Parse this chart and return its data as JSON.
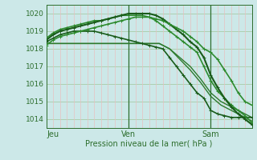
{
  "background_color": "#cce8e8",
  "grid_color_green": "#a8cca8",
  "grid_color_pink": "#e8c0c0",
  "axis_color": "#2d6e2d",
  "ylim": [
    1013.5,
    1020.5
  ],
  "xlim": [
    0,
    60
  ],
  "yticks": [
    1014,
    1015,
    1016,
    1017,
    1018,
    1019,
    1020
  ],
  "day_ticks": [
    2,
    24,
    48
  ],
  "day_labels": [
    "Jeu",
    "Ven",
    "Sam"
  ],
  "xlabel": "Pression niveau de la mer( hPa )",
  "series": [
    {
      "x": [
        0,
        3,
        6,
        9,
        12,
        15,
        18,
        21,
        24,
        27,
        30,
        33,
        36,
        39,
        42,
        45,
        48,
        51,
        54,
        57,
        60
      ],
      "y": [
        1018.3,
        1018.3,
        1018.3,
        1018.3,
        1018.3,
        1018.3,
        1018.3,
        1018.3,
        1018.3,
        1018.3,
        1018.3,
        1018.3,
        1018.0,
        1017.5,
        1017.0,
        1016.3,
        1015.5,
        1015.0,
        1014.7,
        1014.4,
        1014.1
      ],
      "marker": null,
      "color": "#2d7a2d",
      "lw": 1.0
    },
    {
      "x": [
        0,
        3,
        6,
        9,
        12,
        15,
        18,
        21,
        24,
        27,
        30,
        33,
        36,
        39,
        42,
        45,
        48,
        51,
        54,
        57,
        60
      ],
      "y": [
        1018.3,
        1018.3,
        1018.3,
        1018.3,
        1018.3,
        1018.3,
        1018.3,
        1018.3,
        1018.3,
        1018.3,
        1018.3,
        1018.3,
        1018.0,
        1017.4,
        1016.8,
        1016.1,
        1015.3,
        1014.8,
        1014.5,
        1014.2,
        1013.9
      ],
      "marker": null,
      "color": "#2d7a2d",
      "lw": 1.0
    },
    {
      "x": [
        0,
        2,
        4,
        6,
        8,
        10,
        12,
        14,
        16,
        18,
        20,
        22,
        24,
        26,
        28,
        30,
        32,
        34,
        36,
        38,
        40,
        42,
        44,
        46,
        48,
        50,
        52,
        54,
        56,
        58,
        60
      ],
      "y": [
        1018.4,
        1018.6,
        1018.8,
        1018.9,
        1019.0,
        1019.0,
        1019.0,
        1019.0,
        1018.9,
        1018.8,
        1018.7,
        1018.6,
        1018.5,
        1018.4,
        1018.3,
        1018.2,
        1018.1,
        1018.0,
        1017.5,
        1017.0,
        1016.5,
        1016.0,
        1015.5,
        1015.2,
        1014.5,
        1014.3,
        1014.2,
        1014.1,
        1014.1,
        1014.1,
        1014.1
      ],
      "marker": "+",
      "color": "#1a5c1a",
      "lw": 1.2
    },
    {
      "x": [
        0,
        2,
        4,
        6,
        8,
        10,
        12,
        14,
        16,
        18,
        20,
        22,
        24,
        26,
        28,
        30,
        32,
        34,
        36,
        38,
        40,
        42,
        44,
        46,
        48,
        50,
        52,
        54,
        56,
        58,
        60
      ],
      "y": [
        1018.6,
        1018.9,
        1019.1,
        1019.2,
        1019.3,
        1019.4,
        1019.5,
        1019.6,
        1019.6,
        1019.7,
        1019.8,
        1019.9,
        1019.9,
        1019.9,
        1019.9,
        1019.8,
        1019.6,
        1019.3,
        1019.0,
        1018.7,
        1018.4,
        1018.1,
        1017.8,
        1017.0,
        1016.2,
        1015.6,
        1015.2,
        1014.8,
        1014.5,
        1014.2,
        1013.8
      ],
      "marker": "+",
      "color": "#2e8b2e",
      "lw": 1.2
    },
    {
      "x": [
        0,
        2,
        4,
        6,
        8,
        10,
        12,
        14,
        16,
        18,
        20,
        22,
        24,
        26,
        28,
        30,
        32,
        34,
        36,
        38,
        40,
        42,
        44,
        46,
        48,
        50,
        52,
        54,
        56,
        58,
        60
      ],
      "y": [
        1018.5,
        1018.8,
        1019.0,
        1019.1,
        1019.2,
        1019.3,
        1019.4,
        1019.5,
        1019.6,
        1019.7,
        1019.8,
        1019.9,
        1020.0,
        1020.0,
        1020.0,
        1020.0,
        1019.9,
        1019.7,
        1019.4,
        1019.1,
        1018.8,
        1018.4,
        1018.1,
        1017.5,
        1016.5,
        1015.8,
        1015.2,
        1014.7,
        1014.3,
        1014.0,
        1013.7
      ],
      "marker": "+",
      "color": "#1a5c1a",
      "lw": 1.5
    },
    {
      "x": [
        0,
        2,
        4,
        6,
        8,
        10,
        12,
        14,
        16,
        18,
        20,
        22,
        24,
        26,
        28,
        30,
        32,
        34,
        36,
        38,
        40,
        42,
        44,
        46,
        48,
        50,
        52,
        54,
        56,
        58,
        60
      ],
      "y": [
        1018.2,
        1018.5,
        1018.7,
        1018.8,
        1018.9,
        1019.0,
        1019.1,
        1019.2,
        1019.3,
        1019.4,
        1019.5,
        1019.6,
        1019.7,
        1019.8,
        1019.8,
        1019.8,
        1019.7,
        1019.6,
        1019.4,
        1019.2,
        1019.0,
        1018.7,
        1018.4,
        1018.0,
        1017.8,
        1017.4,
        1016.8,
        1016.2,
        1015.5,
        1015.0,
        1014.8
      ],
      "marker": "+",
      "color": "#2e8b2e",
      "lw": 1.2
    }
  ],
  "vlines": [
    24,
    48
  ],
  "vline_color": "#2d6e2d"
}
